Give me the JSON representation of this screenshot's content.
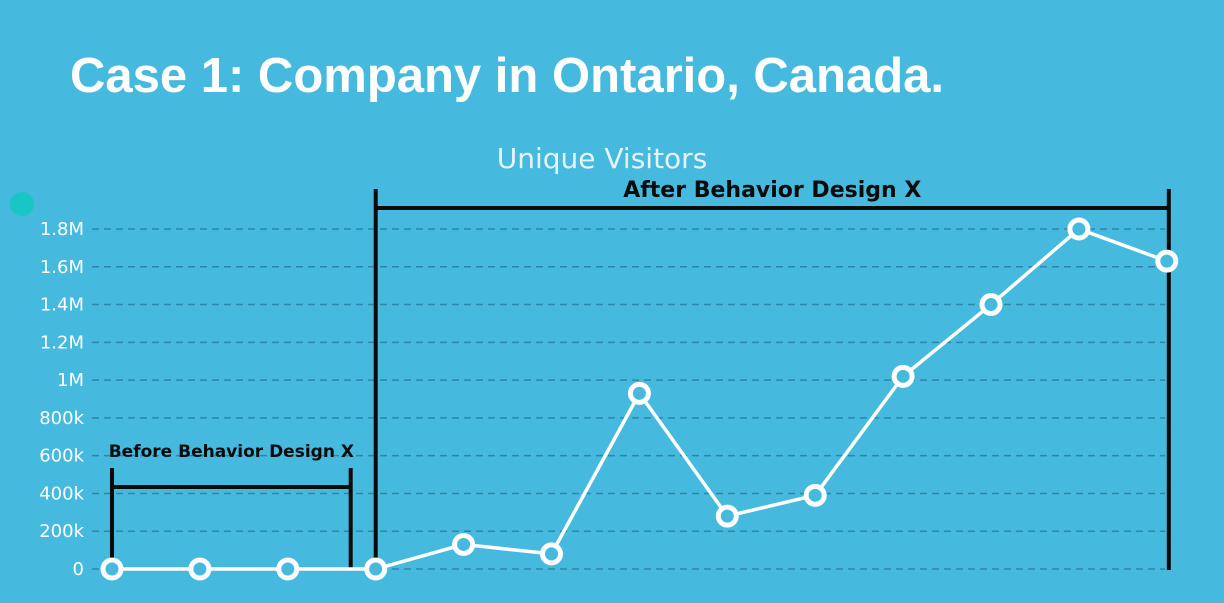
{
  "slide_title": "Case 1: Company in Ontario, Canada.",
  "colors": {
    "background": "#45b9de",
    "line": "#ffffff",
    "bracket": "#0b0b0b",
    "dot": "#18c6c4"
  },
  "chart_data": {
    "type": "line",
    "title": "Unique Visitors",
    "xlabel": "",
    "ylabel": "",
    "ylim": [
      0,
      1800000
    ],
    "yticks": [
      {
        "value": 0,
        "label": "0"
      },
      {
        "value": 200000,
        "label": "200k"
      },
      {
        "value": 400000,
        "label": "400k"
      },
      {
        "value": 600000,
        "label": "600k"
      },
      {
        "value": 800000,
        "label": "800k"
      },
      {
        "value": 1000000,
        "label": "1M"
      },
      {
        "value": 1200000,
        "label": "1.2M"
      },
      {
        "value": 1400000,
        "label": "1.4M"
      },
      {
        "value": 1600000,
        "label": "1.6M"
      },
      {
        "value": 1800000,
        "label": "1.8M"
      }
    ],
    "grid": true,
    "series": [
      {
        "values": [
          0,
          0,
          0,
          0,
          130000,
          80000,
          930000,
          280000,
          390000,
          1020000,
          1400000,
          1800000,
          1630000
        ]
      }
    ],
    "annotations": [
      {
        "label": "Before Behavior Design X",
        "from_point": 0,
        "to_point": 3
      },
      {
        "label": "After Behavior Design X",
        "from_point": 3,
        "to_point": 12
      }
    ]
  }
}
